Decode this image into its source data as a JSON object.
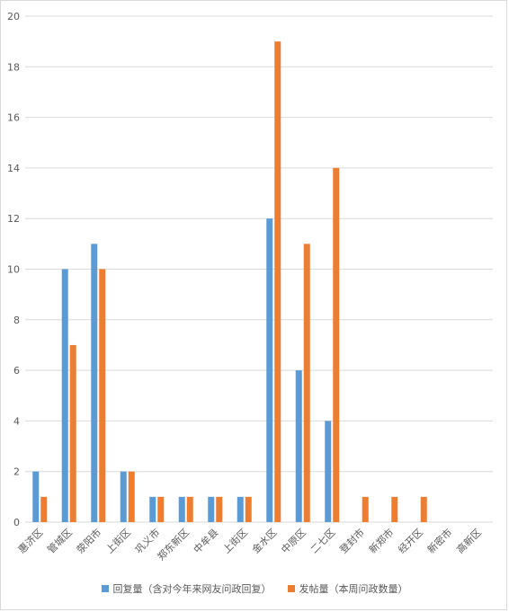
{
  "chart_data": {
    "type": "bar",
    "categories": [
      "惠济区",
      "管城区",
      "荥阳市",
      "上街区",
      "巩义市",
      "郑东新区",
      "中牟县",
      "上街区",
      "金水区",
      "中原区",
      "二七区",
      "登封市",
      "新郑市",
      "经开区",
      "新密市",
      "高新区"
    ],
    "series": [
      {
        "name": "回复量（含对今年来网友问政回复）",
        "color": "#5b9bd5",
        "values": [
          2,
          10,
          11,
          2,
          1,
          1,
          1,
          1,
          12,
          6,
          4,
          0,
          0,
          0,
          0,
          0
        ]
      },
      {
        "name": "发帖量（本周问政数量）",
        "color": "#ed7d31",
        "values": [
          1,
          7,
          10,
          2,
          1,
          1,
          1,
          1,
          19,
          11,
          14,
          1,
          1,
          1,
          0,
          0
        ]
      }
    ],
    "ylim": [
      0,
      20
    ],
    "yticks": [
      0,
      2,
      4,
      6,
      8,
      10,
      12,
      14,
      16,
      18,
      20
    ],
    "grid": true,
    "legend_position": "bottom"
  }
}
